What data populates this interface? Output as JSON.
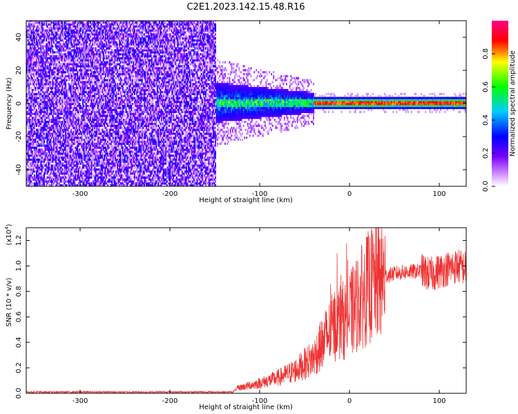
{
  "title": "C2E1.2023.142.15.48.R16",
  "colors": {
    "snr_line": "#ee3333",
    "axis": "#000000",
    "background": "#ffffff"
  },
  "chart_data": [
    {
      "type": "heatmap",
      "xlabel": "Height of straight line (km)",
      "ylabel": "Frequency (Hz)",
      "xlim": [
        -360,
        130
      ],
      "ylim": [
        -50,
        50
      ],
      "x_ticks": [
        "-300",
        "-200",
        "-100",
        "0",
        "100"
      ],
      "x_tick_values": [
        -300,
        -200,
        -100,
        0,
        100
      ],
      "y_ticks": [
        "40",
        "20",
        "0",
        "-20",
        "-40"
      ],
      "y_tick_values": [
        40,
        20,
        0,
        -20,
        -40
      ],
      "colorbar": {
        "label": "Normalized spectral amplitude",
        "range": [
          0,
          1
        ],
        "ticks": [
          "0.0",
          "0.2",
          "0.4",
          "0.6",
          "0.8"
        ],
        "tick_values": [
          0.0,
          0.2,
          0.4,
          0.6,
          0.8
        ],
        "colormap": [
          "#ffffff",
          "#8800ff",
          "#0000ff",
          "#00ccff",
          "#00ff00",
          "#ffff00",
          "#ff0000",
          "#ff0088"
        ]
      },
      "regions": [
        {
          "x_range": [
            -360,
            -150
          ],
          "description_value": "broadband noise",
          "amplitude": 0.1
        },
        {
          "x_range": [
            -150,
            -40
          ],
          "center_hz": 0,
          "half_width_hz": 12,
          "amplitude": 0.35
        },
        {
          "x_range": [
            -40,
            130
          ],
          "center_hz": 0,
          "half_width_hz": 3,
          "amplitude": 0.9
        }
      ]
    },
    {
      "type": "line",
      "xlabel": "Height of straight line (km)",
      "ylabel": "SNR (10 * v/v)",
      "y_multiplier_label": "(x10",
      "y_multiplier_exp": "4",
      "xlim": [
        -360,
        130
      ],
      "ylim": [
        0,
        1.3
      ],
      "x_ticks": [
        "-300",
        "-200",
        "-100",
        "0",
        "100"
      ],
      "x_tick_values": [
        -300,
        -200,
        -100,
        0,
        100
      ],
      "y_ticks": [
        "0.0",
        "0.2",
        "0.4",
        "0.6",
        "0.8",
        "1.0",
        "1.2"
      ],
      "y_tick_values": [
        0.0,
        0.2,
        0.4,
        0.6,
        0.8,
        1.0,
        1.2
      ],
      "series": [
        {
          "x": [
            -360,
            -200,
            -130,
            -125,
            -100,
            -80,
            -60,
            -40,
            -25,
            -15,
            -5,
            0,
            5,
            10,
            20,
            30,
            40,
            50,
            60,
            80,
            90,
            100,
            110,
            120,
            130
          ],
          "y": [
            0.01,
            0.01,
            0.01,
            0.04,
            0.08,
            0.12,
            0.18,
            0.28,
            0.45,
            0.55,
            0.58,
            0.62,
            0.66,
            0.72,
            0.82,
            0.88,
            0.92,
            0.94,
            0.95,
            0.96,
            0.93,
            0.96,
            0.98,
            1.0,
            0.98
          ]
        }
      ]
    }
  ]
}
